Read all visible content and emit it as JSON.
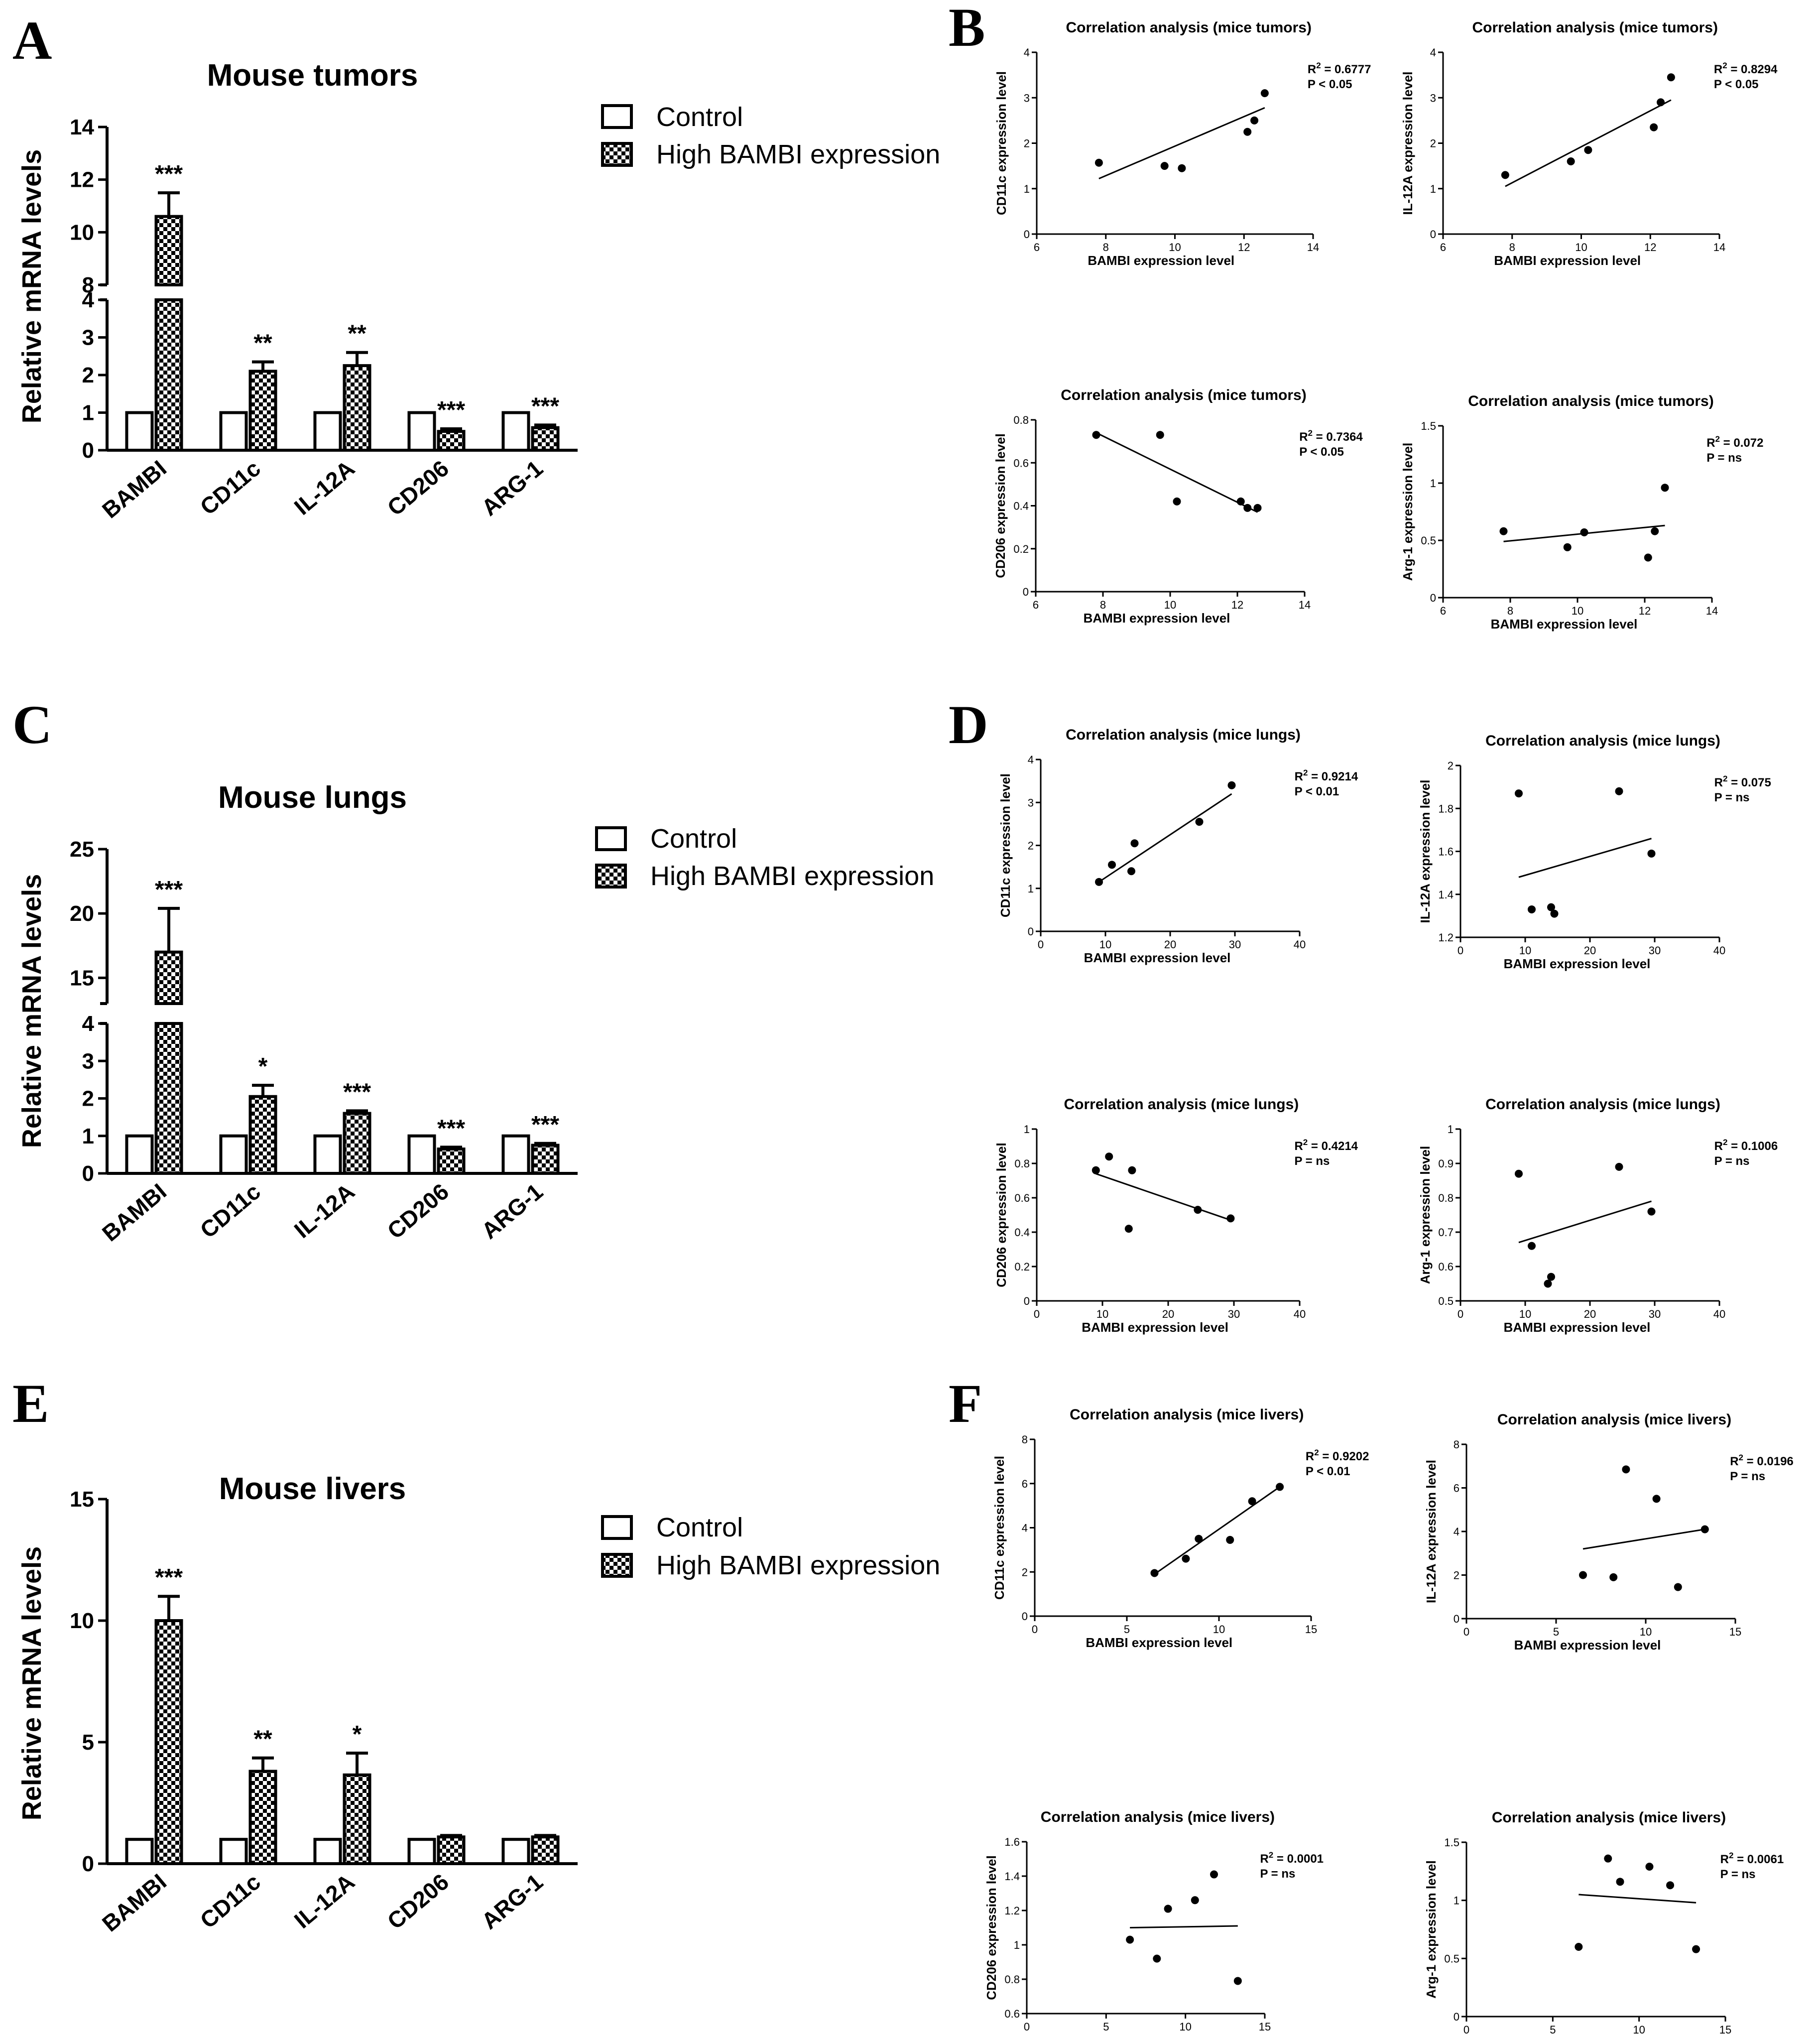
{
  "panels": {
    "A": "A",
    "B": "B",
    "C": "C",
    "D": "D",
    "E": "E",
    "F": "F"
  },
  "legend": {
    "control": "Control",
    "high": "High BAMBI expression"
  },
  "chart_data": [
    {
      "id": "A",
      "type": "bar",
      "title": "Mouse tumors",
      "ylabel": "Relative mRNA levels",
      "categories": [
        "BAMBI",
        "CD11c",
        "IL-12A",
        "CD206",
        "ARG-1"
      ],
      "series": [
        {
          "name": "Control",
          "values": [
            1,
            1,
            1,
            1,
            1
          ],
          "errors": [
            0,
            0,
            0,
            0,
            0
          ]
        },
        {
          "name": "High BAMBI expression",
          "values": [
            10.6,
            2.1,
            2.25,
            0.5,
            0.6
          ],
          "errors": [
            0.9,
            0.25,
            0.35,
            0.07,
            0.07
          ]
        }
      ],
      "significance": [
        "***",
        "**",
        "**",
        "***",
        "***"
      ],
      "axis_break": {
        "lower": [
          0,
          4
        ],
        "upper": [
          8,
          14
        ]
      },
      "yticks": [
        0,
        1,
        2,
        3,
        4,
        8,
        10,
        12,
        14
      ]
    },
    {
      "id": "C",
      "type": "bar",
      "title": "Mouse lungs",
      "ylabel": "Relative mRNA levels",
      "categories": [
        "BAMBI",
        "CD11c",
        "IL-12A",
        "CD206",
        "ARG-1"
      ],
      "series": [
        {
          "name": "Control",
          "values": [
            1,
            1,
            1,
            1,
            1
          ],
          "errors": [
            0,
            0,
            0,
            0,
            0
          ]
        },
        {
          "name": "High BAMBI expression",
          "values": [
            17,
            2.05,
            1.6,
            0.65,
            0.75
          ],
          "errors": [
            3.4,
            0.3,
            0.07,
            0.05,
            0.05
          ]
        }
      ],
      "significance": [
        "***",
        "*",
        "***",
        "***",
        "***"
      ],
      "axis_break": {
        "lower": [
          0,
          4
        ],
        "upper": [
          13,
          25
        ]
      },
      "yticks": [
        0,
        1,
        2,
        3,
        4,
        15,
        20,
        25
      ]
    },
    {
      "id": "E",
      "type": "bar",
      "title": "Mouse livers",
      "ylabel": "Relative mRNA levels",
      "categories": [
        "BAMBI",
        "CD11c",
        "IL-12A",
        "CD206",
        "ARG-1"
      ],
      "series": [
        {
          "name": "Control",
          "values": [
            1,
            1,
            1,
            1,
            1
          ],
          "errors": [
            0,
            0,
            0,
            0,
            0
          ]
        },
        {
          "name": "High BAMBI expression",
          "values": [
            10,
            3.8,
            3.65,
            1.1,
            1.1
          ],
          "errors": [
            1,
            0.55,
            0.9,
            0.06,
            0.06
          ]
        }
      ],
      "significance": [
        "***",
        "**",
        "*",
        "",
        ""
      ],
      "ylim": [
        0,
        15
      ],
      "yticks": [
        0,
        5,
        10,
        15
      ]
    },
    {
      "id": "B1",
      "type": "scatter",
      "title": "Correlation analysis (mice tumors)",
      "xlabel": "BAMBI expression level",
      "ylabel": "CD11c expression level",
      "xlim": [
        6,
        14
      ],
      "xticks": [
        6,
        8,
        10,
        12,
        14
      ],
      "ylim": [
        0,
        4
      ],
      "yticks": [
        0,
        1,
        2,
        3,
        4
      ],
      "points": [
        [
          7.8,
          1.57
        ],
        [
          9.7,
          1.5
        ],
        [
          10.2,
          1.45
        ],
        [
          12.1,
          2.25
        ],
        [
          12.3,
          2.5
        ],
        [
          12.6,
          3.1
        ]
      ],
      "fit": [
        [
          7.8,
          1.22
        ],
        [
          12.6,
          2.78
        ]
      ],
      "r2": "= 0.6777",
      "p": "P < 0.05"
    },
    {
      "id": "B2",
      "type": "scatter",
      "title": "Correlation analysis (mice tumors)",
      "xlabel": "BAMBI expression level",
      "ylabel": "IL-12A expression level",
      "xlim": [
        6,
        14
      ],
      "xticks": [
        6,
        8,
        10,
        12,
        14
      ],
      "ylim": [
        0,
        4
      ],
      "yticks": [
        0,
        1,
        2,
        3,
        4
      ],
      "points": [
        [
          7.8,
          1.3
        ],
        [
          9.7,
          1.6
        ],
        [
          10.2,
          1.85
        ],
        [
          12.1,
          2.35
        ],
        [
          12.3,
          2.9
        ],
        [
          12.6,
          3.45
        ]
      ],
      "fit": [
        [
          7.8,
          1.05
        ],
        [
          12.6,
          2.95
        ]
      ],
      "r2": "= 0.8294",
      "p": "P < 0.05"
    },
    {
      "id": "B3",
      "type": "scatter",
      "title": "Correlation analysis (mice tumors)",
      "xlabel": "BAMBI expression level",
      "ylabel": "CD206 expression level",
      "xlim": [
        6,
        14
      ],
      "xticks": [
        6,
        8,
        10,
        12,
        14
      ],
      "ylim": [
        0,
        0.8
      ],
      "yticks": [
        0.0,
        0.2,
        0.4,
        0.6,
        0.8
      ],
      "points": [
        [
          7.8,
          0.73
        ],
        [
          9.7,
          0.73
        ],
        [
          10.2,
          0.42
        ],
        [
          12.1,
          0.42
        ],
        [
          12.3,
          0.39
        ],
        [
          12.6,
          0.39
        ]
      ],
      "fit": [
        [
          7.8,
          0.74
        ],
        [
          12.6,
          0.37
        ]
      ],
      "r2": "= 0.7364",
      "p": "P < 0.05"
    },
    {
      "id": "B4",
      "type": "scatter",
      "title": "Correlation analysis  (mice tumors)",
      "xlabel": "BAMBI expression level",
      "ylabel": "Arg-1 expression level",
      "xlim": [
        6,
        14
      ],
      "xticks": [
        6,
        8,
        10,
        12,
        14
      ],
      "ylim": [
        0,
        1.5
      ],
      "yticks": [
        0.0,
        0.5,
        1.0,
        1.5
      ],
      "points": [
        [
          7.8,
          0.58
        ],
        [
          9.7,
          0.44
        ],
        [
          10.2,
          0.57
        ],
        [
          12.1,
          0.35
        ],
        [
          12.3,
          0.58
        ],
        [
          12.6,
          0.96
        ]
      ],
      "fit": [
        [
          7.8,
          0.49
        ],
        [
          12.6,
          0.63
        ]
      ],
      "r2": "= 0.072",
      "p": "P = ns"
    },
    {
      "id": "D1",
      "type": "scatter",
      "title": "Correlation analysis (mice lungs)",
      "xlabel": "BAMBI expression level",
      "ylabel": "CD11c expression level",
      "xlim": [
        0,
        40
      ],
      "xticks": [
        0,
        10,
        20,
        30,
        40
      ],
      "ylim": [
        0,
        4
      ],
      "yticks": [
        0,
        1,
        2,
        3,
        4
      ],
      "points": [
        [
          9,
          1.15
        ],
        [
          11,
          1.55
        ],
        [
          14,
          1.4
        ],
        [
          14.5,
          2.05
        ],
        [
          24.5,
          2.55
        ],
        [
          29.5,
          3.4
        ]
      ],
      "fit": [
        [
          9,
          1.15
        ],
        [
          29.5,
          3.2
        ]
      ],
      "r2": "= 0.9214",
      "p": "P < 0.01"
    },
    {
      "id": "D2",
      "type": "scatter",
      "title": "Correlation analysis (mice lungs)",
      "xlabel": "BAMBI expression level",
      "ylabel": "IL-12A expression level",
      "xlim": [
        0,
        40
      ],
      "xticks": [
        0,
        10,
        20,
        30,
        40
      ],
      "ylim": [
        1.2,
        2.0
      ],
      "yticks": [
        1.2,
        1.4,
        1.6,
        1.8,
        2.0
      ],
      "points": [
        [
          9,
          1.87
        ],
        [
          11,
          1.33
        ],
        [
          14,
          1.34
        ],
        [
          14.5,
          1.31
        ],
        [
          24.5,
          1.88
        ],
        [
          29.5,
          1.59
        ]
      ],
      "fit": [
        [
          9,
          1.48
        ],
        [
          29.5,
          1.66
        ]
      ],
      "r2": "= 0.075",
      "p": "P = ns"
    },
    {
      "id": "D3",
      "type": "scatter",
      "title": "Correlation analysis (mice lungs)",
      "xlabel": "BAMBI expression level",
      "ylabel": "CD206 expression level",
      "xlim": [
        0,
        40
      ],
      "xticks": [
        0,
        10,
        20,
        30,
        40
      ],
      "ylim": [
        0,
        1.0
      ],
      "yticks": [
        0.0,
        0.2,
        0.4,
        0.6,
        0.8,
        1.0
      ],
      "points": [
        [
          9,
          0.76
        ],
        [
          11,
          0.84
        ],
        [
          14,
          0.42
        ],
        [
          14.5,
          0.76
        ],
        [
          24.5,
          0.53
        ],
        [
          29.5,
          0.48
        ]
      ],
      "fit": [
        [
          9,
          0.74
        ],
        [
          29.5,
          0.47
        ]
      ],
      "r2": "= 0.4214",
      "p": "P = ns"
    },
    {
      "id": "D4",
      "type": "scatter",
      "title": "Correlation analysis  (mice lungs)",
      "xlabel": "BAMBI expression level",
      "ylabel": "Arg-1 expression level",
      "xlim": [
        0,
        40
      ],
      "xticks": [
        0,
        10,
        20,
        30,
        40
      ],
      "ylim": [
        0.5,
        1.0
      ],
      "yticks": [
        0.5,
        0.6,
        0.7,
        0.8,
        0.9,
        1.0
      ],
      "points": [
        [
          9,
          0.87
        ],
        [
          11,
          0.66
        ],
        [
          13.5,
          0.55
        ],
        [
          14,
          0.57
        ],
        [
          24.5,
          0.89
        ],
        [
          29.5,
          0.76
        ]
      ],
      "fit": [
        [
          9,
          0.67
        ],
        [
          29.5,
          0.79
        ]
      ],
      "r2": "= 0.1006",
      "p": "P = ns"
    },
    {
      "id": "F1",
      "type": "scatter",
      "title": "Correlation analysis (mice livers)",
      "xlabel": "BAMBI expression level",
      "ylabel": "CD11c expression level",
      "xlim": [
        0,
        15
      ],
      "xticks": [
        0,
        5,
        10,
        15
      ],
      "ylim": [
        0,
        8
      ],
      "yticks": [
        0,
        2,
        4,
        6,
        8
      ],
      "points": [
        [
          6.5,
          1.95
        ],
        [
          8.2,
          2.6
        ],
        [
          8.9,
          3.5
        ],
        [
          10.6,
          3.45
        ],
        [
          11.8,
          5.2
        ],
        [
          13.3,
          5.85
        ]
      ],
      "fit": [
        [
          6.5,
          1.9
        ],
        [
          13.3,
          5.85
        ]
      ],
      "r2": "= 0.9202",
      "p": "P < 0.01"
    },
    {
      "id": "F2",
      "type": "scatter",
      "title": "Correlation analysis (mice livers)",
      "xlabel": "BAMBI expression level",
      "ylabel": "IL-12A expression level",
      "xlim": [
        0,
        15
      ],
      "xticks": [
        0,
        5,
        10,
        15
      ],
      "ylim": [
        0,
        8
      ],
      "yticks": [
        0,
        2,
        4,
        6,
        8
      ],
      "points": [
        [
          6.5,
          2.0
        ],
        [
          8.2,
          1.9
        ],
        [
          8.9,
          6.85
        ],
        [
          10.6,
          5.5
        ],
        [
          11.8,
          1.45
        ],
        [
          13.3,
          4.1
        ]
      ],
      "fit": [
        [
          6.5,
          3.2
        ],
        [
          13.3,
          4.1
        ]
      ],
      "r2": "= 0.0196",
      "p": "P = ns"
    },
    {
      "id": "F3",
      "type": "scatter",
      "title": "Correlation analysis (mice livers)",
      "xlabel": "BAMBI expression level",
      "ylabel": "CD206 expression level",
      "xlim": [
        0,
        15
      ],
      "xticks": [
        0,
        5,
        10,
        15
      ],
      "ylim": [
        0.6,
        1.6
      ],
      "yticks": [
        0.6,
        0.8,
        1.0,
        1.2,
        1.4,
        1.6
      ],
      "points": [
        [
          6.5,
          1.03
        ],
        [
          8.2,
          0.92
        ],
        [
          8.9,
          1.21
        ],
        [
          10.6,
          1.26
        ],
        [
          11.8,
          1.41
        ],
        [
          13.3,
          0.79
        ]
      ],
      "fit": [
        [
          6.5,
          1.1
        ],
        [
          13.3,
          1.11
        ]
      ],
      "r2": "= 0.0001",
      "p": "P = ns"
    },
    {
      "id": "F4",
      "type": "scatter",
      "title": "Correlation analysis  (mice livers)",
      "xlabel": "BAMBI expression level",
      "ylabel": "Arg-1 expression level",
      "xlim": [
        0,
        15
      ],
      "xticks": [
        0,
        5,
        10,
        15
      ],
      "ylim": [
        0.0,
        1.5
      ],
      "yticks": [
        0.0,
        0.5,
        1.0,
        1.5
      ],
      "points": [
        [
          6.5,
          0.6
        ],
        [
          8.2,
          1.36
        ],
        [
          8.9,
          1.16
        ],
        [
          10.6,
          1.29
        ],
        [
          11.8,
          1.13
        ],
        [
          13.3,
          0.58
        ]
      ],
      "fit": [
        [
          6.5,
          1.05
        ],
        [
          13.3,
          0.98
        ]
      ],
      "r2": "= 0.0061",
      "p": "P = ns"
    }
  ]
}
